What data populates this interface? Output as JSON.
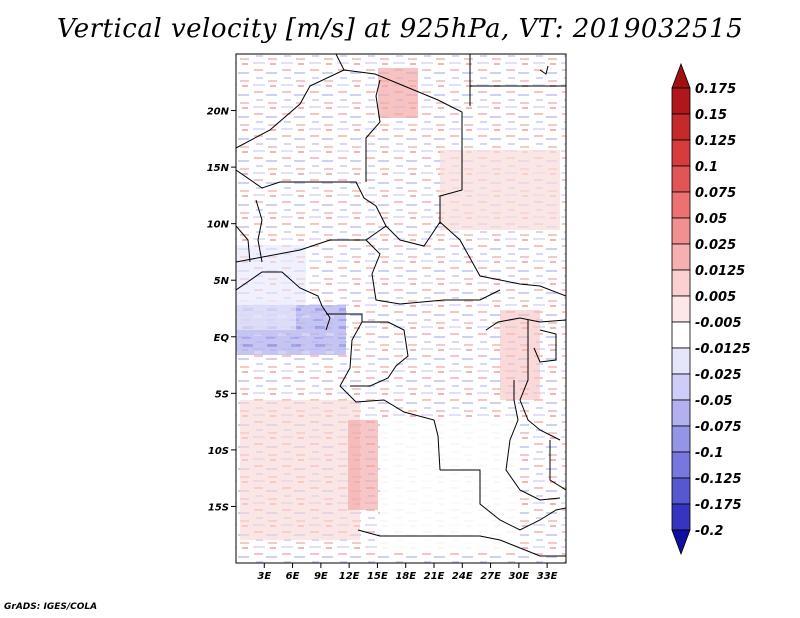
{
  "title": "Vertical velocity [m/s] at 925hPa, VT: 2019032515",
  "credit": "GrADS: IGES/COLA",
  "map": {
    "lon_range": [
      0,
      35
    ],
    "lat_range": [
      -20,
      25
    ],
    "lon_ticks": [
      {
        "value": 3,
        "label": "3E"
      },
      {
        "value": 6,
        "label": "6E"
      },
      {
        "value": 9,
        "label": "9E"
      },
      {
        "value": 12,
        "label": "12E"
      },
      {
        "value": 15,
        "label": "15E"
      },
      {
        "value": 18,
        "label": "18E"
      },
      {
        "value": 21,
        "label": "21E"
      },
      {
        "value": 24,
        "label": "24E"
      },
      {
        "value": 27,
        "label": "27E"
      },
      {
        "value": 30,
        "label": "30E"
      },
      {
        "value": 33,
        "label": "33E"
      }
    ],
    "lat_ticks": [
      {
        "value": 20,
        "label": "20N"
      },
      {
        "value": 15,
        "label": "15N"
      },
      {
        "value": 10,
        "label": "10N"
      },
      {
        "value": 5,
        "label": "5N"
      },
      {
        "value": 0,
        "label": "EQ"
      },
      {
        "value": -5,
        "label": "5S"
      },
      {
        "value": -10,
        "label": "10S"
      },
      {
        "value": -15,
        "label": "15S"
      }
    ]
  },
  "colorbar": {
    "levels": [
      {
        "label": "0.175",
        "color": "#b0171c"
      },
      {
        "label": "0.15",
        "color": "#c52a2a"
      },
      {
        "label": "0.125",
        "color": "#d63c3c"
      },
      {
        "label": "0.1",
        "color": "#e25555"
      },
      {
        "label": "0.075",
        "color": "#ea7272"
      },
      {
        "label": "0.05",
        "color": "#f09090"
      },
      {
        "label": "0.025",
        "color": "#f6b0b0"
      },
      {
        "label": "0.0125",
        "color": "#fad0d0"
      },
      {
        "label": "0.005",
        "color": "#fde8e8"
      },
      {
        "label": "-0.005",
        "color": "#ffffff"
      },
      {
        "label": "-0.0125",
        "color": "#e6e6fb"
      },
      {
        "label": "-0.025",
        "color": "#cdcdf7"
      },
      {
        "label": "-0.05",
        "color": "#b1b1f0"
      },
      {
        "label": "-0.075",
        "color": "#9595e8"
      },
      {
        "label": "-0.1",
        "color": "#7777dd"
      },
      {
        "label": "-0.125",
        "color": "#5757d0"
      },
      {
        "label": "-0.175",
        "color": "#3535bf"
      },
      {
        "label": "-0.2",
        "color": "#1a1aa8"
      }
    ],
    "top_arrow_color": "#a01010",
    "bottom_arrow_color": "#1010a0"
  }
}
